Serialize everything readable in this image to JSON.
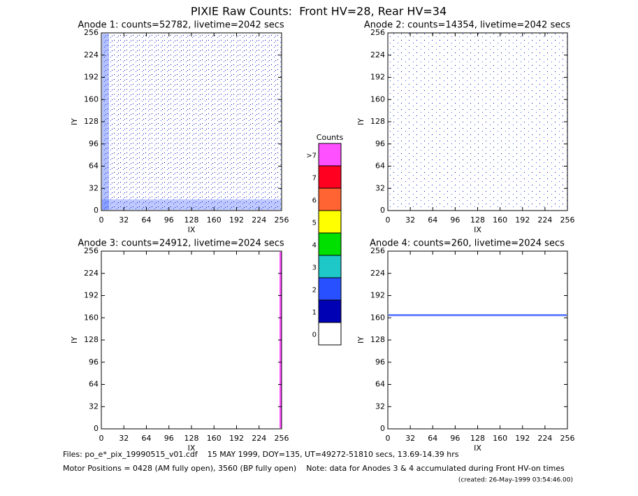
{
  "title": "PIXIE Raw Counts:  Front HV=28, Rear HV=34",
  "chart_data": [
    {
      "type": "heatmap",
      "title": "Anode 1: counts=52782, livetime=2042 secs",
      "xlabel": "IX",
      "ylabel": "IY",
      "xlim": [
        0,
        256
      ],
      "ylim": [
        0,
        256
      ],
      "xticks": [
        0,
        32,
        64,
        96,
        128,
        160,
        192,
        224,
        256
      ],
      "yticks": [
        0,
        32,
        64,
        96,
        128,
        160,
        192,
        224,
        256
      ]
    },
    {
      "type": "heatmap",
      "title": "Anode 2: counts=14354, livetime=2042 secs",
      "xlabel": "IX",
      "ylabel": "IY",
      "xlim": [
        0,
        256
      ],
      "ylim": [
        0,
        256
      ],
      "xticks": [
        0,
        32,
        64,
        96,
        128,
        160,
        192,
        224,
        256
      ],
      "yticks": [
        0,
        32,
        64,
        96,
        128,
        160,
        192,
        224,
        256
      ]
    },
    {
      "type": "heatmap",
      "title": "Anode 3: counts=24912, livetime=2024 secs",
      "xlabel": "IX",
      "ylabel": "IY",
      "xlim": [
        0,
        256
      ],
      "ylim": [
        0,
        256
      ],
      "xticks": [
        0,
        32,
        64,
        96,
        128,
        160,
        192,
        224,
        256
      ],
      "yticks": [
        0,
        32,
        64,
        96,
        128,
        160,
        192,
        224,
        256
      ]
    },
    {
      "type": "heatmap",
      "title": "Anode 4: counts=260, livetime=2024 secs",
      "xlabel": "IX",
      "ylabel": "IY",
      "xlim": [
        0,
        256
      ],
      "ylim": [
        0,
        256
      ],
      "xticks": [
        0,
        32,
        64,
        96,
        128,
        160,
        192,
        224,
        256
      ],
      "yticks": [
        0,
        32,
        64,
        96,
        128,
        160,
        192,
        224,
        256
      ]
    }
  ],
  "colorbar": {
    "title": "Counts",
    "labels": [
      0,
      1,
      2,
      3,
      4,
      5,
      6,
      7,
      ">7"
    ],
    "colors": [
      "#ffffff",
      "#0000b4",
      "#2850ff",
      "#1ec8c8",
      "#00e000",
      "#ffff00",
      "#ff6432",
      "#ff0020",
      "#ff50ff"
    ]
  },
  "footer": [
    "Files: po_e*_pix_19990515_v01.cdf    15 MAY 1999, DOY=135, UT=49272-51810 secs, 13.69-14.39 hrs",
    "Motor Positions = 0428 (AM fully open), 3560 (BP fully open)    Note: data for Anodes 3 & 4 accumulated during Front HV-on times",
    "(created: 26-May-1999 03:54:46.00)"
  ]
}
